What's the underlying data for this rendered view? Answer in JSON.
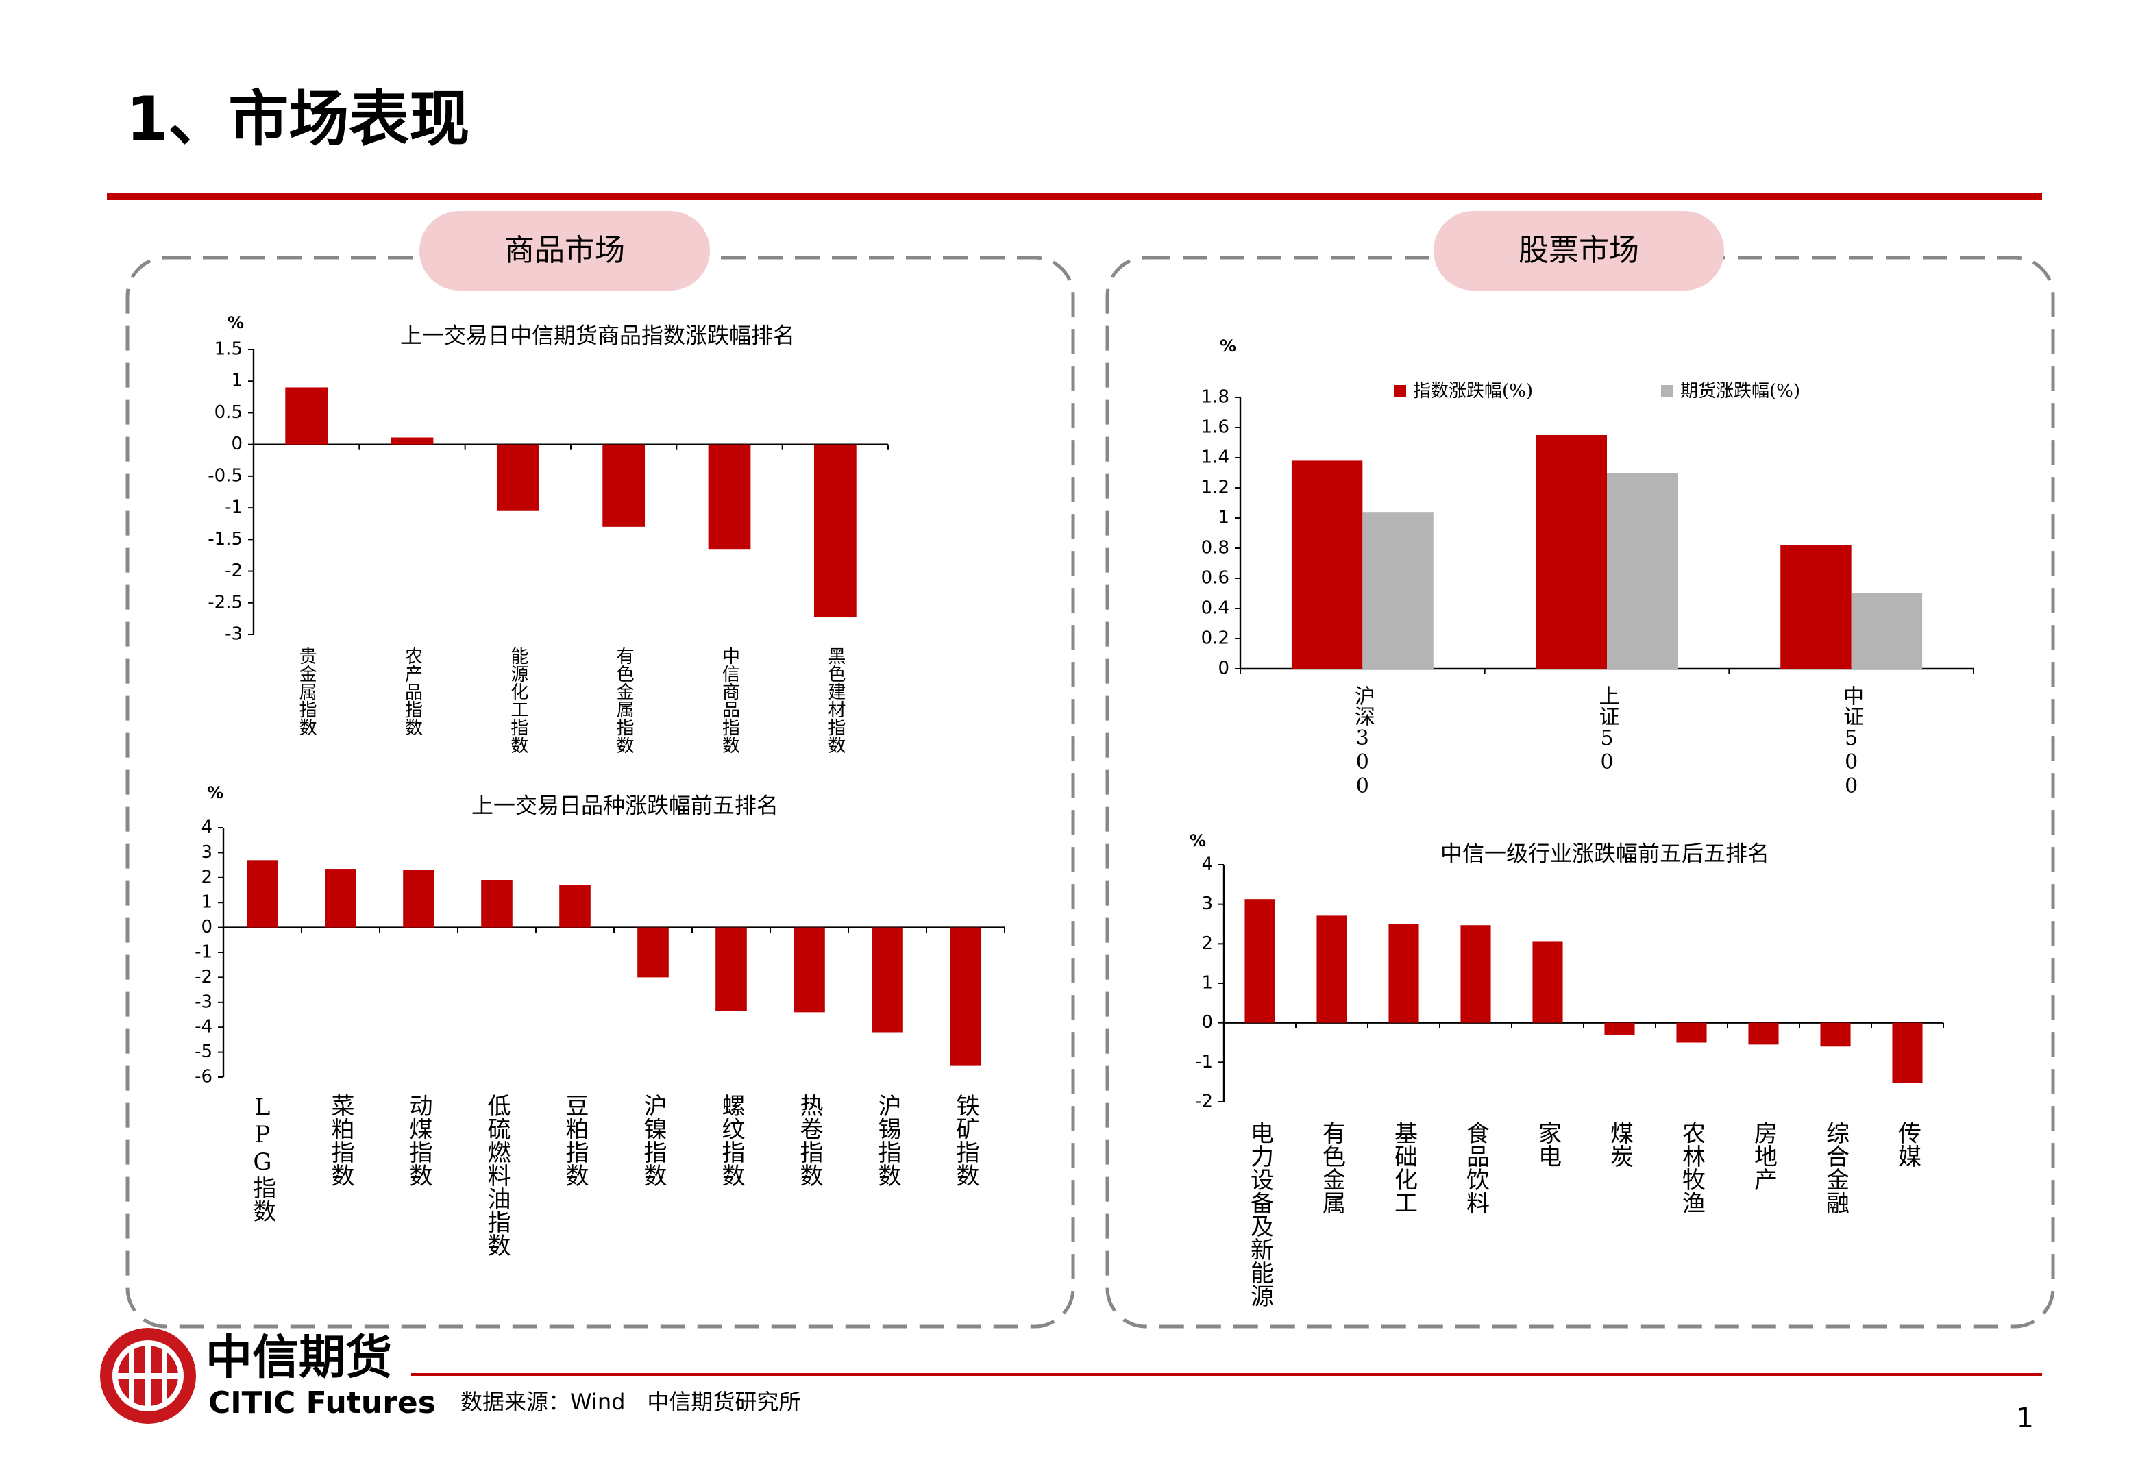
{
  "header": {
    "title": "1、市场表现"
  },
  "panels": [
    "商品市场",
    "股票市场"
  ],
  "footer": {
    "brand_cn": "中信期货",
    "brand_en": "CITIC Futures",
    "source": "数据来源：Wind　中信期货研究所",
    "page": "1"
  },
  "chart_data": [
    {
      "type": "bar",
      "title": "上一交易日中信期货商品指数涨跌幅排名",
      "y_label": "%",
      "categories": [
        "贵金属指数",
        "农产品指数",
        "能源化工指数",
        "有色金属指数",
        "中信商品指数",
        "黑色建材指数"
      ],
      "values": [
        0.9,
        0.11,
        -1.05,
        -1.3,
        -1.65,
        -2.73
      ],
      "color": "#c00000",
      "ylim": [
        -3,
        1.5
      ],
      "yticks": [
        -3,
        -2.5,
        -2,
        -1.5,
        -1,
        -0.5,
        0,
        0.5,
        1,
        1.5
      ]
    },
    {
      "type": "bar",
      "title": "上一交易日品种涨跌幅前五排名",
      "y_label": "%",
      "categories": [
        "LPG指数",
        "菜粕指数",
        "动煤指数",
        "低硫燃料油指数",
        "豆粕指数",
        "沪镍指数",
        "螺纹指数",
        "热卷指数",
        "沪锡指数",
        "铁矿指数"
      ],
      "values": [
        2.7,
        2.35,
        2.3,
        1.9,
        1.7,
        -2.0,
        -3.35,
        -3.4,
        -4.2,
        -5.55
      ],
      "color": "#c00000",
      "ylim": [
        -6,
        4
      ],
      "yticks": [
        -6,
        -5,
        -4,
        -3,
        -2,
        -1,
        0,
        1,
        2,
        3,
        4
      ]
    },
    {
      "type": "grouped_bar",
      "y_label": "%",
      "categories": [
        "沪深300",
        "上证50",
        "中证500"
      ],
      "series": [
        {
          "name": "指数涨跌幅(%)",
          "color": "#c00000",
          "values": [
            1.38,
            1.55,
            0.82
          ]
        },
        {
          "name": "期货涨跌幅(%)",
          "color": "#b4b4b4",
          "values": [
            1.04,
            1.3,
            0.5
          ]
        }
      ],
      "ylim": [
        0,
        1.8
      ],
      "yticks": [
        0,
        0.2,
        0.4,
        0.6,
        0.8,
        1,
        1.2,
        1.4,
        1.6,
        1.8
      ]
    },
    {
      "type": "bar",
      "title": "中信一级行业涨跌幅前五后五排名",
      "y_label": "%",
      "categories": [
        "电力设备及新能源",
        "有色金属",
        "基础化工",
        "食品饮料",
        "家电",
        "煤炭",
        "农林牧渔",
        "房地产",
        "综合金融",
        "传媒"
      ],
      "values": [
        3.13,
        2.71,
        2.5,
        2.47,
        2.05,
        -0.3,
        -0.5,
        -0.55,
        -0.6,
        -1.52
      ],
      "color": "#c00000",
      "ylim": [
        -2,
        4
      ],
      "yticks": [
        -2,
        -1,
        0,
        1,
        2,
        3,
        4
      ]
    }
  ]
}
